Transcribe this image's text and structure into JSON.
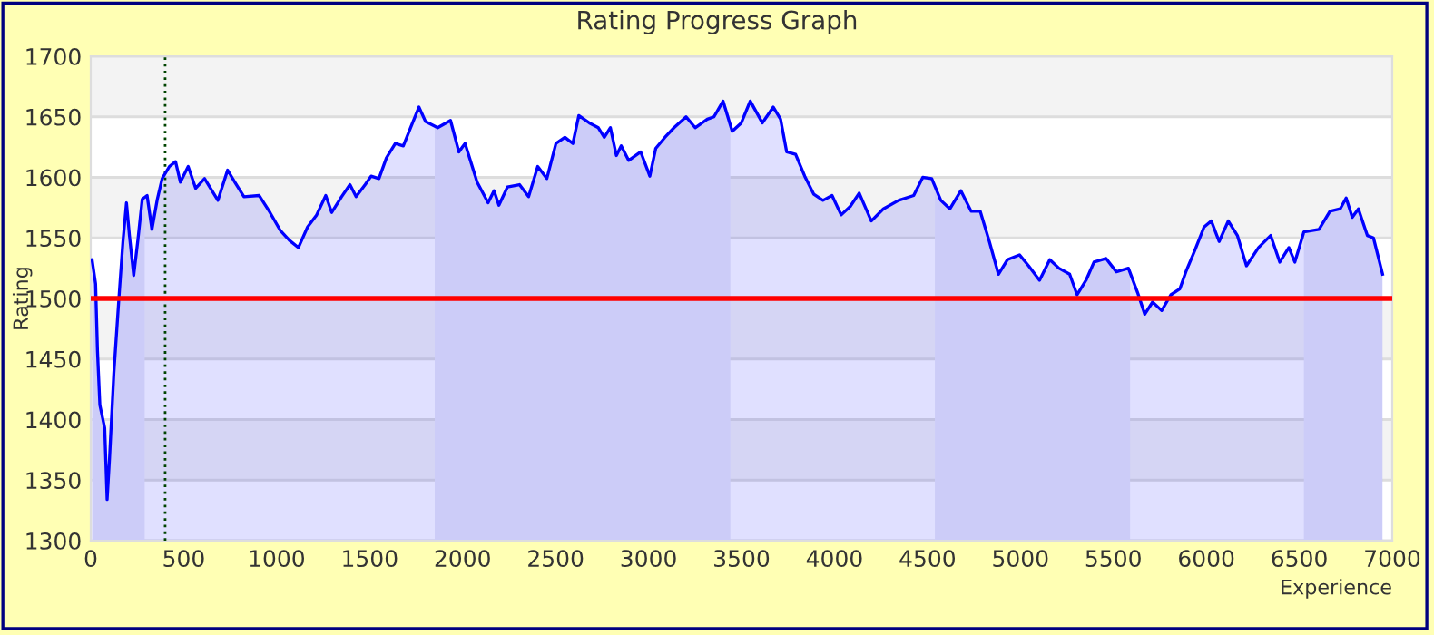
{
  "chart_data": {
    "type": "area",
    "title": "Rating Progress Graph",
    "xlabel": "Experience",
    "ylabel": "Rating",
    "xlim": [
      0,
      7000
    ],
    "xticks": [
      0,
      500,
      1000,
      1500,
      2000,
      2500,
      3000,
      3500,
      4000,
      4500,
      5000,
      5500,
      6000,
      6500,
      7000
    ],
    "ylim": [
      1300,
      1700
    ],
    "yticks": [
      1300,
      1350,
      1400,
      1450,
      1500,
      1550,
      1600,
      1650,
      1700
    ],
    "grid": "y",
    "series": [
      {
        "color": "#0000ff",
        "x": [
          7,
          26,
          36,
          49,
          75,
          88,
          101,
          124,
          150,
          173,
          192,
          208,
          231,
          254,
          277,
          303,
          329,
          358,
          384,
          423,
          456,
          482,
          524,
          564,
          612,
          684,
          736,
          775,
          824,
          906,
          964,
          1020,
          1068,
          1117,
          1166,
          1215,
          1264,
          1296,
          1349,
          1394,
          1427,
          1476,
          1508,
          1550,
          1590,
          1638,
          1681,
          1720,
          1765,
          1801,
          1866,
          1935,
          1980,
          2013,
          2078,
          2137,
          2169,
          2195,
          2241,
          2306,
          2355,
          2404,
          2453,
          2502,
          2550,
          2593,
          2625,
          2681,
          2730,
          2762,
          2795,
          2827,
          2853,
          2893,
          2958,
          3007,
          3039,
          3088,
          3137,
          3202,
          3251,
          3316,
          3352,
          3401,
          3450,
          3499,
          3547,
          3612,
          3671,
          3710,
          3743,
          3791,
          3840,
          3889,
          3938,
          3987,
          4036,
          4085,
          4133,
          4198,
          4263,
          4345,
          4426,
          4475,
          4523,
          4572,
          4621,
          4680,
          4735,
          4784,
          4833,
          4882,
          4930,
          4995,
          5044,
          5103,
          5158,
          5207,
          5265,
          5305,
          5353,
          5396,
          5461,
          5516,
          5581,
          5630,
          5669,
          5711,
          5760,
          5809,
          5858,
          5890,
          5939,
          5988,
          6027,
          6069,
          6118,
          6167,
          6216,
          6281,
          6346,
          6395,
          6444,
          6476,
          6525,
          6606,
          6665,
          6720,
          6752,
          6785,
          6818,
          6866,
          6899,
          6948
        ],
        "values": [
          1532,
          1512,
          1457,
          1412,
          1393,
          1334,
          1368,
          1438,
          1497,
          1547,
          1579,
          1552,
          1519,
          1549,
          1582,
          1585,
          1557,
          1582,
          1599,
          1609,
          1613,
          1596,
          1609,
          1591,
          1599,
          1581,
          1606,
          1596,
          1584,
          1585,
          1571,
          1556,
          1548,
          1542,
          1559,
          1569,
          1585,
          1571,
          1584,
          1594,
          1584,
          1594,
          1601,
          1599,
          1616,
          1628,
          1626,
          1641,
          1658,
          1646,
          1641,
          1647,
          1621,
          1628,
          1596,
          1579,
          1589,
          1577,
          1592,
          1594,
          1584,
          1609,
          1599,
          1628,
          1633,
          1628,
          1651,
          1645,
          1641,
          1633,
          1641,
          1618,
          1626,
          1614,
          1621,
          1601,
          1624,
          1633,
          1641,
          1650,
          1641,
          1648,
          1650,
          1663,
          1638,
          1645,
          1663,
          1645,
          1658,
          1648,
          1621,
          1619,
          1601,
          1586,
          1581,
          1585,
          1569,
          1576,
          1587,
          1564,
          1574,
          1581,
          1585,
          1600,
          1599,
          1581,
          1574,
          1589,
          1572,
          1572,
          1547,
          1520,
          1532,
          1536,
          1527,
          1515,
          1532,
          1525,
          1520,
          1503,
          1515,
          1530,
          1533,
          1522,
          1525,
          1505,
          1487,
          1497,
          1490,
          1503,
          1508,
          1522,
          1540,
          1559,
          1564,
          1547,
          1564,
          1552,
          1527,
          1542,
          1552,
          1530,
          1542,
          1530,
          1555,
          1557,
          1572,
          1574,
          1583,
          1567,
          1574,
          1552,
          1550,
          1520
        ]
      }
    ],
    "ref_lines": [
      {
        "axis": "y",
        "value": 1500,
        "color": "#ff0000",
        "line_style": "solid"
      },
      {
        "axis": "x",
        "value": 400,
        "color": "#004400",
        "line_style": "dotted"
      }
    ],
    "bands": [
      {
        "axis": "y",
        "from": 1650,
        "to": 1700,
        "color": "#f3f3f3"
      },
      {
        "axis": "y",
        "from": 1550,
        "to": 1600,
        "color": "#f3f3f3"
      },
      {
        "axis": "y",
        "from": 1450,
        "to": 1500,
        "color": "#f3f3f3"
      },
      {
        "axis": "y",
        "from": 1350,
        "to": 1400,
        "color": "#f3f3f3"
      },
      {
        "axis": "x",
        "from": 0,
        "to": 290,
        "color": "#e9e9f8"
      },
      {
        "axis": "x",
        "from": 1850,
        "to": 3440,
        "color": "#e9e9f8"
      },
      {
        "axis": "x",
        "from": 4540,
        "to": 5590,
        "color": "#e9e9f8"
      },
      {
        "axis": "x",
        "from": 6525,
        "to": 6948,
        "color": "#e9e9f8"
      }
    ]
  }
}
